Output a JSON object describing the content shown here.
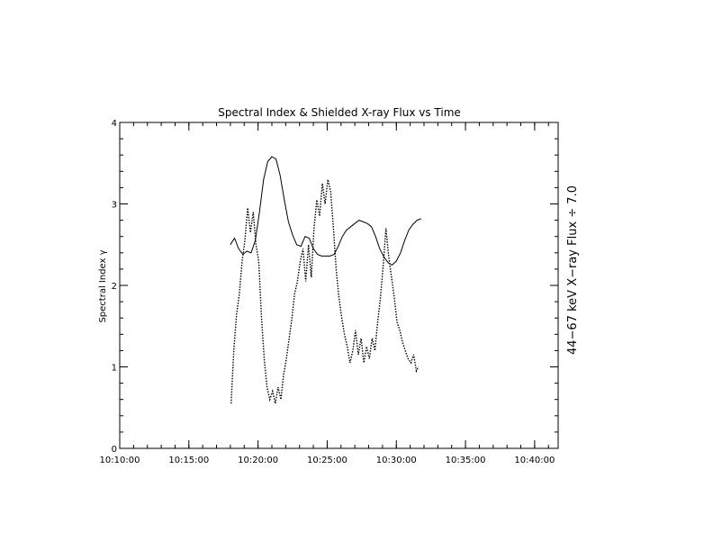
{
  "chart_data": {
    "type": "line",
    "title": "Spectral Index & Shielded X-ray Flux vs Time",
    "ylabel": "Spectral Index γ",
    "y2label": "44−67 keV X−ray Flux ÷ 7.0",
    "xlabel": "",
    "x_tick_labels": [
      "10:10:00",
      "10:15:00",
      "10:20:00",
      "10:25:00",
      "10:30:00",
      "10:35:00",
      "10:40:00"
    ],
    "x_tick_minutes": [
      10,
      15,
      20,
      25,
      30,
      35,
      40
    ],
    "x_minor_step_minutes": 1,
    "xlim_minutes": [
      10,
      41.7
    ],
    "y_tick_labels": [
      "0",
      "1",
      "2",
      "3",
      "4"
    ],
    "y_ticks": [
      0,
      1,
      2,
      3,
      4
    ],
    "y_minor_step": 0.2,
    "ylim": [
      0,
      4
    ],
    "grid": false,
    "legend": "none",
    "series": [
      {
        "style": "solid",
        "x_minutes": [
          18.0,
          18.3,
          18.6,
          18.9,
          19.2,
          19.5,
          19.8,
          20.1,
          20.4,
          20.7,
          21.0,
          21.3,
          21.6,
          21.9,
          22.2,
          22.5,
          22.8,
          23.1,
          23.4,
          23.7,
          24.0,
          24.3,
          24.6,
          24.9,
          25.2,
          25.5,
          25.8,
          26.1,
          26.4,
          26.7,
          27.0,
          27.3,
          27.6,
          27.9,
          28.2,
          28.5,
          28.8,
          29.1,
          29.4,
          29.7,
          30.0,
          30.3,
          30.6,
          30.9,
          31.2,
          31.5,
          31.8
        ],
        "values": [
          2.5,
          2.58,
          2.45,
          2.38,
          2.42,
          2.4,
          2.55,
          2.9,
          3.3,
          3.52,
          3.58,
          3.55,
          3.35,
          3.05,
          2.78,
          2.62,
          2.5,
          2.48,
          2.6,
          2.58,
          2.45,
          2.38,
          2.36,
          2.36,
          2.36,
          2.38,
          2.48,
          2.6,
          2.68,
          2.72,
          2.76,
          2.8,
          2.78,
          2.76,
          2.72,
          2.6,
          2.45,
          2.35,
          2.28,
          2.25,
          2.3,
          2.4,
          2.55,
          2.68,
          2.75,
          2.8,
          2.82
        ]
      },
      {
        "style": "dotted",
        "x_minutes": [
          18.05,
          18.25,
          18.45,
          18.65,
          18.85,
          19.05,
          19.25,
          19.45,
          19.65,
          19.85,
          20.05,
          20.25,
          20.45,
          20.65,
          20.85,
          21.05,
          21.25,
          21.45,
          21.65,
          21.85,
          22.05,
          22.25,
          22.45,
          22.65,
          22.85,
          23.05,
          23.25,
          23.45,
          23.65,
          23.85,
          24.05,
          24.25,
          24.45,
          24.65,
          24.85,
          25.05,
          25.25,
          25.45,
          25.65,
          25.85,
          26.05,
          26.25,
          26.45,
          26.65,
          26.85,
          27.05,
          27.25,
          27.45,
          27.65,
          27.85,
          28.05,
          28.25,
          28.45,
          28.65,
          28.85,
          29.05,
          29.25,
          29.45,
          29.65,
          29.85,
          30.05,
          30.25,
          30.45,
          30.65,
          30.85,
          31.05,
          31.25,
          31.45,
          31.6
        ],
        "values": [
          0.55,
          1.2,
          1.65,
          1.9,
          2.3,
          2.55,
          2.95,
          2.65,
          2.9,
          2.5,
          2.3,
          1.6,
          1.1,
          0.75,
          0.6,
          0.7,
          0.55,
          0.75,
          0.6,
          0.9,
          1.1,
          1.35,
          1.6,
          1.9,
          2.05,
          2.3,
          2.45,
          2.05,
          2.5,
          2.1,
          2.7,
          3.05,
          2.85,
          3.25,
          3.0,
          3.3,
          3.15,
          2.7,
          2.2,
          1.85,
          1.6,
          1.4,
          1.25,
          1.05,
          1.2,
          1.45,
          1.15,
          1.35,
          1.05,
          1.25,
          1.1,
          1.35,
          1.2,
          1.55,
          1.85,
          2.25,
          2.7,
          2.35,
          2.1,
          1.85,
          1.55,
          1.45,
          1.3,
          1.2,
          1.1,
          1.05,
          1.15,
          0.95,
          1.0
        ]
      }
    ]
  }
}
